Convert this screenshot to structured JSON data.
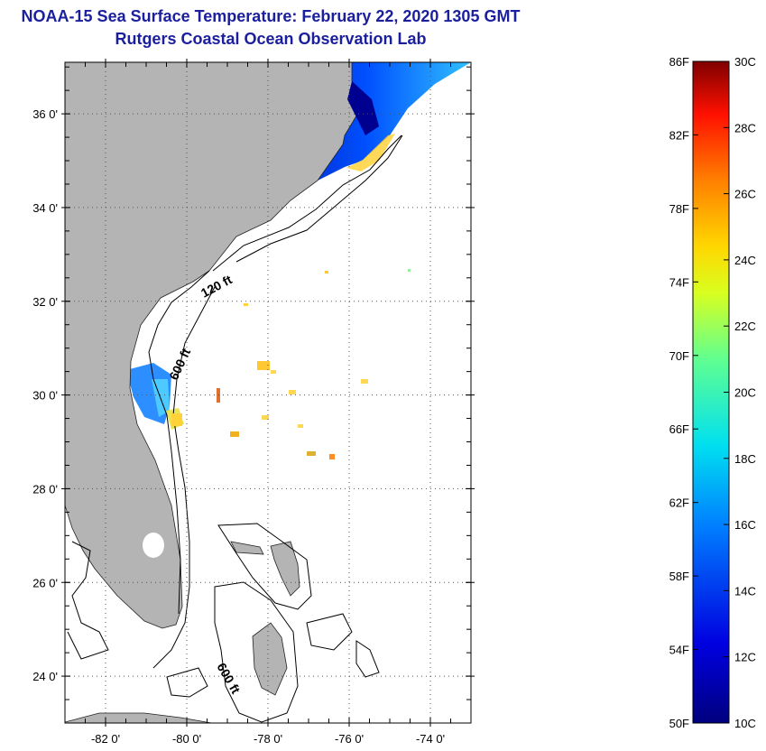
{
  "title": {
    "line1": "NOAA-15 Sea Surface Temperature:  February 22, 2020 1305 GMT",
    "line2": "Rutgers Coastal Ocean Observation Lab"
  },
  "map": {
    "lat_ticks": [
      {
        "value": 36,
        "label": "36 0'"
      },
      {
        "value": 34,
        "label": "34 0'"
      },
      {
        "value": 32,
        "label": "32 0'"
      },
      {
        "value": 30,
        "label": "30 0'"
      },
      {
        "value": 28,
        "label": "28 0'"
      },
      {
        "value": 26,
        "label": "26 0'"
      },
      {
        "value": 24,
        "label": "24 0'"
      }
    ],
    "lon_ticks": [
      {
        "value": -82,
        "label": "-82 0'"
      },
      {
        "value": -80,
        "label": "-80 0'"
      },
      {
        "value": -78,
        "label": "-78 0'"
      },
      {
        "value": -76,
        "label": "-76 0'"
      },
      {
        "value": -74,
        "label": "-74 0'"
      }
    ],
    "lat_range": [
      23,
      37.1
    ],
    "lon_range": [
      -83,
      -73
    ],
    "contour_labels": [
      "120 ft",
      "600 ft",
      "600 ft"
    ],
    "land_color": "#b4b4b4"
  },
  "colorbar": {
    "f_labels": [
      "86F",
      "82F",
      "78F",
      "74F",
      "70F",
      "66F",
      "62F",
      "58F",
      "54F",
      "50F"
    ],
    "c_labels": [
      "30C",
      "28C",
      "26C",
      "24C",
      "22C",
      "20C",
      "18C",
      "16C",
      "14C",
      "12C",
      "10C"
    ],
    "min_c": 10,
    "max_c": 30
  }
}
